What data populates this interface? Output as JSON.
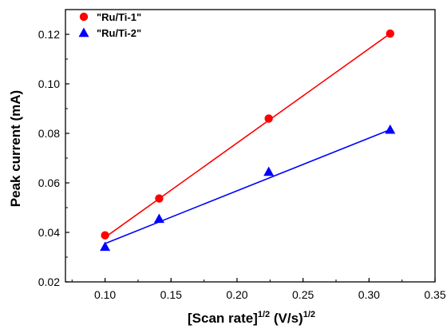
{
  "chart_data": {
    "type": "scatter",
    "xlabel": "[Scan rate]1/2 (V/s)1/2",
    "xlabel_parts": {
      "main": "[Scan rate]",
      "sup1": "1/2",
      "mid": " (V/s)",
      "sup2": "1/2"
    },
    "ylabel": "Peak current (mA)",
    "xlim": [
      0.07,
      0.35
    ],
    "ylim": [
      0.02,
      0.13
    ],
    "xticks": [
      0.1,
      0.15,
      0.2,
      0.25,
      0.3,
      0.35
    ],
    "xtick_labels": [
      "0.10",
      "0.15",
      "0.20",
      "0.25",
      "0.30",
      "0.35"
    ],
    "yticks": [
      0.02,
      0.04,
      0.06,
      0.08,
      0.1,
      0.12
    ],
    "ytick_labels": [
      "0.02",
      "0.04",
      "0.06",
      "0.08",
      "0.10",
      "0.12"
    ],
    "grid": false,
    "legend_position": "top-left",
    "series": [
      {
        "name": "\"Ru/Ti-1\"",
        "color": "#ff0000",
        "marker": "circle",
        "x": [
          0.1,
          0.141,
          0.224,
          0.316
        ],
        "y": [
          0.0388,
          0.0537,
          0.086,
          0.1203
        ],
        "fit_line": [
          [
            0.1,
            0.038
          ],
          [
            0.316,
            0.1203
          ]
        ]
      },
      {
        "name": "\"Ru/Ti-2\"",
        "color": "#0000ff",
        "marker": "triangle",
        "x": [
          0.1,
          0.141,
          0.224,
          0.316
        ],
        "y": [
          0.0342,
          0.0455,
          0.0645,
          0.0815
        ],
        "fit_line": [
          [
            0.1,
            0.0355
          ],
          [
            0.316,
            0.0815
          ]
        ]
      }
    ]
  }
}
